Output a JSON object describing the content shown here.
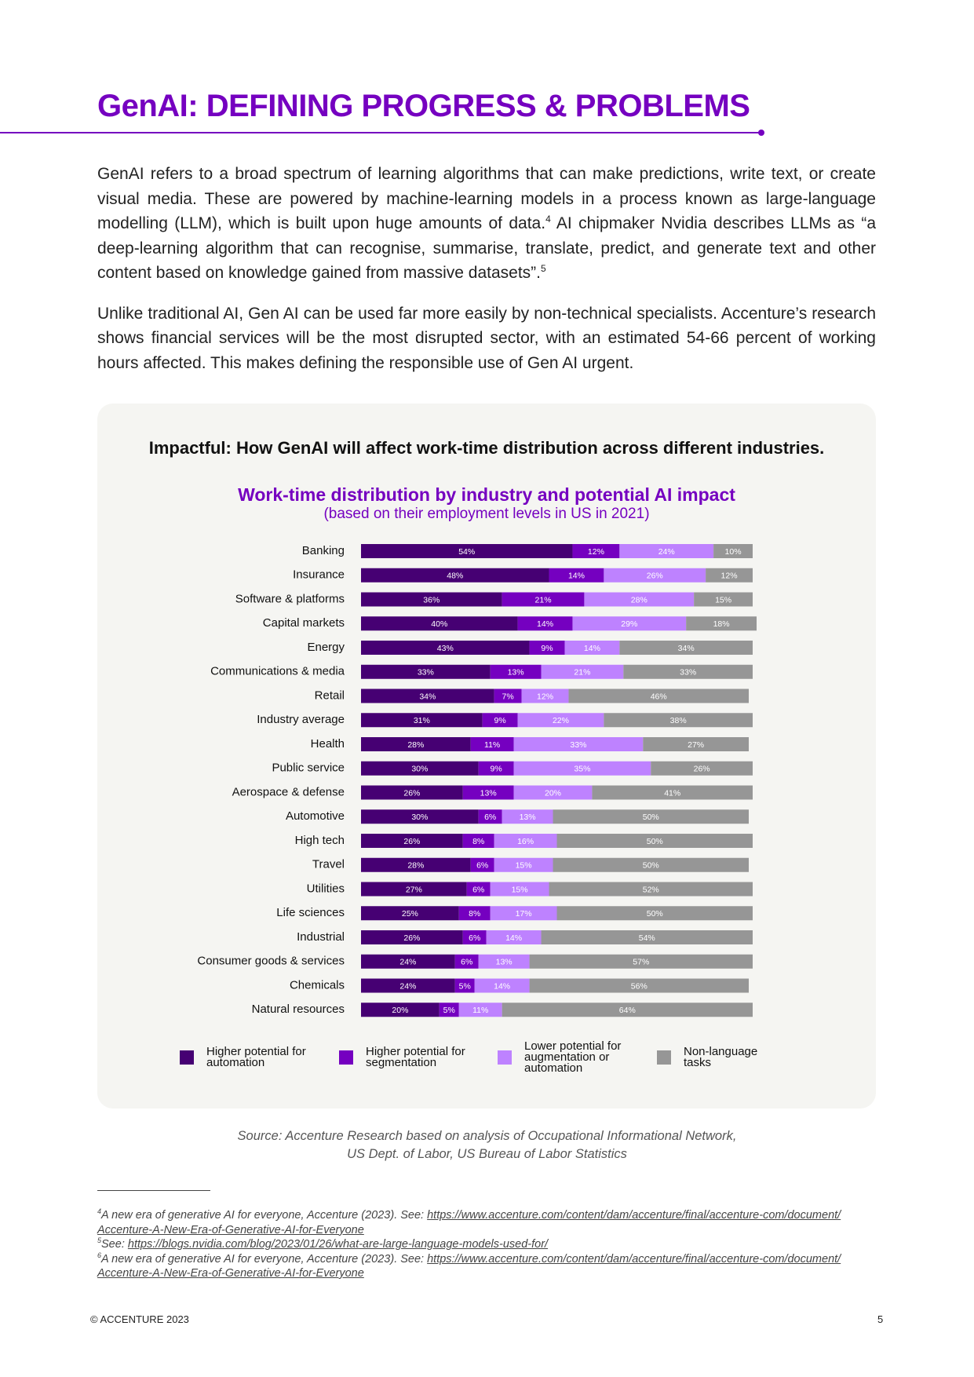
{
  "title": "GenAI: DEFINING PROGRESS & PROBLEMS",
  "paragraphs": [
    [
      {
        "text": "GenAI refers to a broad spectrum of learning algorithms that can make predictions, write text, or create visual media. These are powered by machine-learning models in a process known as large-language modelling (LLM), which is built upon huge amounts of data."
      },
      {
        "sup": "4"
      },
      {
        "text": " AI chipmaker Nvidia describes LLMs as “a deep-learning algorithm that can recognise, summarise, translate, predict, and generate text and other content based on knowledge gained from massive datasets”."
      },
      {
        "sup": "5"
      }
    ],
    [
      {
        "text": "Unlike traditional AI, Gen AI can be used far more easily by non-technical specialists. Accenture’s research shows financial services will be the most disrupted sector, with an estimated 54-66 percent of working hours affected.  This makes defining the responsible use of Gen AI urgent."
      }
    ]
  ],
  "panel_heading": "Impactful: How GenAI will affect work-time distribution across different industries.",
  "chart_data": {
    "type": "stacked-barh",
    "title": "Work-time distribution by industry and potential AI impact",
    "subtitle": "(based on their employment levels in US in 2021)",
    "categories": [
      "Banking",
      "Insurance",
      "Software & platforms",
      "Capital markets",
      "Energy",
      "Communications & media",
      "Retail",
      "Industry average",
      "Health",
      "Public service",
      "Aerospace & defense",
      "Automotive",
      "High tech",
      "Travel",
      "Utilities",
      "Life sciences",
      "Industrial",
      "Consumer goods & services",
      "Chemicals",
      "Natural resources"
    ],
    "xlim": [
      0,
      100
    ],
    "series": [
      {
        "name": "Higher potential for automation",
        "color": "#460073",
        "values": [
          54,
          48,
          36,
          40,
          43,
          33,
          34,
          31,
          28,
          30,
          26,
          30,
          26,
          28,
          27,
          25,
          26,
          24,
          24,
          20
        ],
        "value_labels": [
          "54%",
          "48%",
          "36%",
          "40%",
          "43%",
          "33%",
          "34%",
          "31%",
          "28%",
          "30%",
          "26%",
          "30%",
          "26%",
          "28%",
          "27%",
          "25%",
          "26%",
          "24%",
          "24%",
          "20%"
        ]
      },
      {
        "name": "Higher potential for segmentation",
        "color": "#7500c0",
        "values": [
          12,
          14,
          21,
          14,
          9,
          13,
          7,
          9,
          11,
          9,
          13,
          6,
          8,
          6,
          6,
          8,
          6,
          6,
          5,
          5
        ],
        "value_labels": [
          "12%",
          "14%",
          "21%",
          "14%",
          "9%",
          "13%",
          "7%",
          "9%",
          "11%",
          "9%",
          "13%",
          "6%",
          "8%",
          "6%",
          "6%",
          "8%",
          "6%",
          "6%",
          "5%",
          "5%"
        ]
      },
      {
        "name": "Lower potential for augmentation or automation",
        "color": "#be82ff",
        "values": [
          24,
          26,
          28,
          29,
          14,
          21,
          12,
          22,
          33,
          35,
          20,
          13,
          16,
          15,
          15,
          17,
          14,
          13,
          14,
          11
        ],
        "value_labels": [
          "24%",
          "26%",
          "28%",
          "29%",
          "14%",
          "21%",
          "12%",
          "22%",
          "33%",
          "35%",
          "20%",
          "13%",
          "16%",
          "15%",
          "15%",
          "17%",
          "14%",
          "13%",
          "14%",
          "11%"
        ]
      },
      {
        "name": "Non-language tasks",
        "color": "#969696",
        "values": [
          10,
          12,
          15,
          18,
          34,
          33,
          46,
          38,
          27,
          26,
          41,
          50,
          50,
          50,
          52,
          50,
          54,
          57,
          56,
          64
        ],
        "value_labels": [
          "10%",
          "12%",
          "15%",
          "18%",
          "34%",
          "33%",
          "46%",
          "38%",
          "27%",
          "26%",
          "41%",
          "50%",
          "50%",
          "50%",
          "52%",
          "50%",
          "54%",
          "57%",
          "56%",
          "64%"
        ]
      }
    ]
  },
  "source": [
    "Source: Accenture Research based on analysis of Occupational Informational Network,",
    "US Dept. of Labor, US Bureau of Labor Statistics"
  ],
  "footnotes": [
    {
      "marker": "4",
      "text": "A new era of generative AI for everyone, Accenture (2023). See: ",
      "link": "https://www.accenture.com/content/dam/accenture/final/accenture-com/document/Accenture-A-New-Era-of-Generative-AI-for-Everyone"
    },
    {
      "marker": "5",
      "text": "See: ",
      "link": "https://blogs.nvidia.com/blog/2023/01/26/what-are-large-language-models-used-for/"
    },
    {
      "marker": "6",
      "text": "A new era of generative AI for everyone, Accenture (2023). See: ",
      "link": "https://www.accenture.com/content/dam/accenture/final/accenture-com/document/Accenture-A-New-Era-of-Generative-AI-for-Everyone"
    }
  ],
  "footer": {
    "copyright": "© ACCENTURE 2023",
    "page": "5"
  }
}
